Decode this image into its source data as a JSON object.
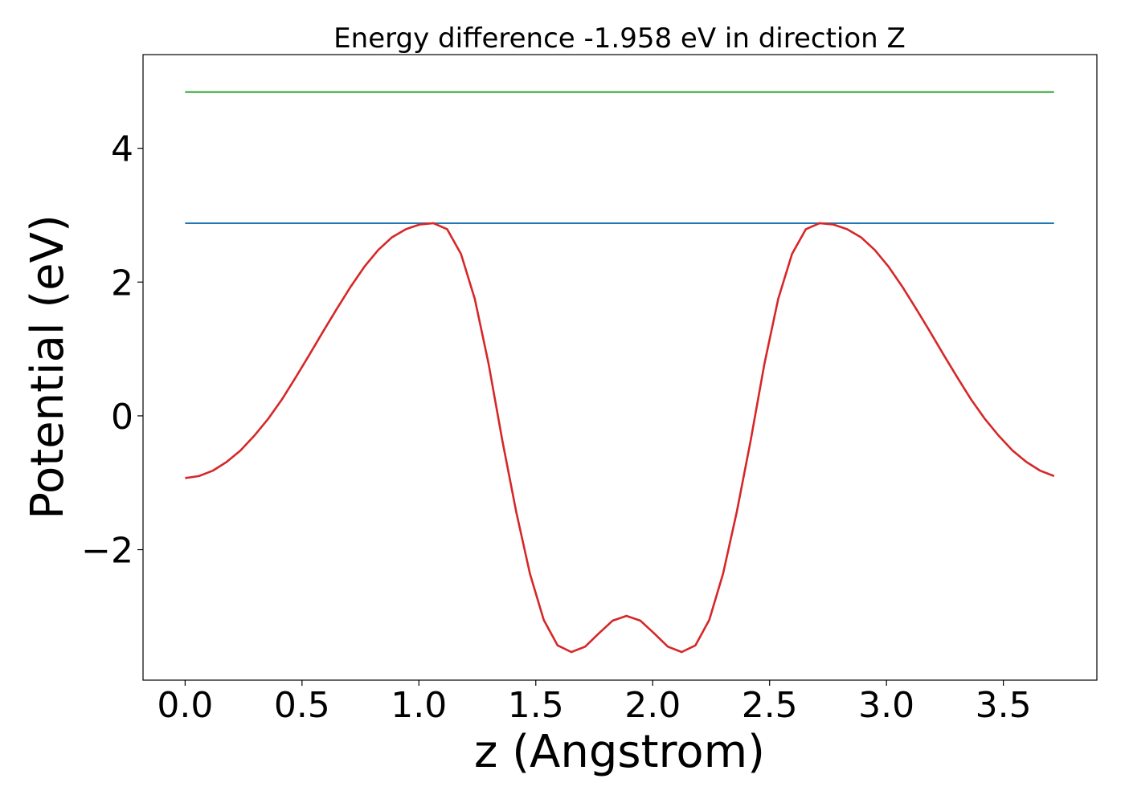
{
  "chart_data": {
    "type": "line",
    "title": "Energy difference -1.958 eV in direction Z",
    "xlabel": "z (Angstrom)",
    "ylabel": "Potential (eV)",
    "xlim": [
      -0.18,
      3.9
    ],
    "ylim": [
      -3.95,
      5.4
    ],
    "xticks": [
      0.0,
      0.5,
      1.0,
      1.5,
      2.0,
      2.5,
      3.0,
      3.5
    ],
    "xtick_labels": [
      "0.0",
      "0.5",
      "1.0",
      "1.5",
      "2.0",
      "2.5",
      "3.0",
      "3.5"
    ],
    "yticks": [
      -2,
      0,
      2,
      4
    ],
    "ytick_labels": [
      "−2",
      "0",
      "2",
      "4"
    ],
    "grid": false,
    "series": [
      {
        "color": "#d62728",
        "x": [
          0.0,
          0.059,
          0.118,
          0.177,
          0.236,
          0.295,
          0.354,
          0.413,
          0.472,
          0.531,
          0.59,
          0.649,
          0.708,
          0.767,
          0.826,
          0.885,
          0.944,
          1.003,
          1.062,
          1.121,
          1.18,
          1.239,
          1.298,
          1.357,
          1.416,
          1.475,
          1.534,
          1.593,
          1.652,
          1.711,
          1.77,
          1.829,
          1.888,
          1.947,
          2.006,
          2.065,
          2.124,
          2.183,
          2.242,
          2.301,
          2.36,
          2.419,
          2.478,
          2.537,
          2.596,
          2.655,
          2.714,
          2.773,
          2.832,
          2.891,
          2.95,
          3.009,
          3.068,
          3.127,
          3.186,
          3.245,
          3.304,
          3.363,
          3.422,
          3.481,
          3.54,
          3.599,
          3.658,
          3.717
        ],
        "values": [
          -0.93,
          -0.9,
          -0.82,
          -0.69,
          -0.52,
          -0.3,
          -0.05,
          0.24,
          0.57,
          0.91,
          1.26,
          1.6,
          1.93,
          2.23,
          2.48,
          2.67,
          2.79,
          2.86,
          2.88,
          2.79,
          2.42,
          1.75,
          0.78,
          -0.37,
          -1.43,
          -2.36,
          -3.05,
          -3.43,
          -3.53,
          -3.45,
          -3.25,
          -3.06,
          -2.99,
          -3.06,
          -3.25,
          -3.45,
          -3.53,
          -3.43,
          -3.05,
          -2.36,
          -1.43,
          -0.37,
          0.78,
          1.75,
          2.42,
          2.79,
          2.88,
          2.86,
          2.79,
          2.67,
          2.48,
          2.23,
          1.93,
          1.6,
          1.26,
          0.91,
          0.57,
          0.24,
          -0.05,
          -0.3,
          -0.52,
          -0.69,
          -0.82,
          -0.9
        ]
      },
      {
        "color": "#1f77b4",
        "x": [
          0.0,
          3.717
        ],
        "values": [
          2.88,
          2.88
        ]
      },
      {
        "color": "#2ca02c",
        "x": [
          0.0,
          3.717
        ],
        "values": [
          4.84,
          4.84
        ]
      }
    ]
  }
}
